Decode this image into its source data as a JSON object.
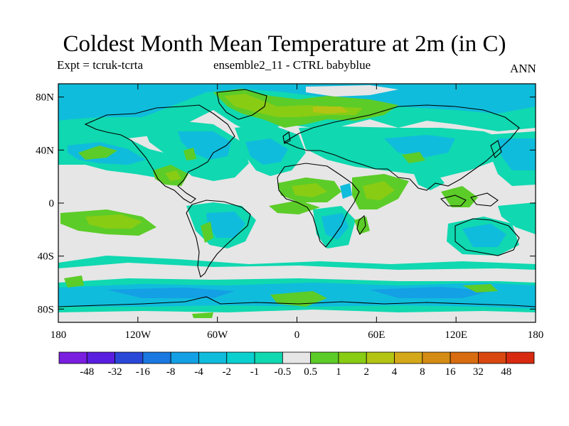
{
  "title": "Coldest Month Mean Temperature at 2m (in C)",
  "subtitle_left": "Expt = tcruk-tcrta",
  "subtitle_center": "ensemble2_11 - CTRL babyblue",
  "subtitle_right": "ANN",
  "axes": {
    "lat_ticks": [
      "80N",
      "40N",
      "0",
      "40S",
      "80S"
    ],
    "lat_values": [
      80,
      40,
      0,
      -40,
      -80
    ],
    "lon_ticks": [
      "180",
      "120W",
      "60W",
      "0",
      "60E",
      "120E",
      "180"
    ],
    "lon_values": [
      -180,
      -120,
      -60,
      0,
      60,
      120,
      180
    ]
  },
  "legend": {
    "labels": [
      "-48",
      "-32",
      "-16",
      "-8",
      "-4",
      "-2",
      "-1",
      "-0.5",
      "0.5",
      "1",
      "2",
      "4",
      "8",
      "16",
      "32",
      "48"
    ],
    "colors": [
      "#7a1ee0",
      "#5a1ee0",
      "#2a48d8",
      "#1a78e0",
      "#14a0e4",
      "#10bcdc",
      "#0ad0d0",
      "#10d8b0",
      "#e6e6e6",
      "#5ccc28",
      "#88cc14",
      "#b4c414",
      "#d4a818",
      "#d48c14",
      "#d86c10",
      "#d84810",
      "#d82a10"
    ]
  },
  "palette": {
    "neutral": "#e6e6e6",
    "cool_light": "#10d8b0",
    "cool_mid": "#0ad0d0",
    "cool_deep": "#10bcdc",
    "cool_strong": "#14a0e4",
    "warm_light": "#5ccc28",
    "warm_mid": "#88cc14",
    "warm_strong": "#b4c414"
  }
}
